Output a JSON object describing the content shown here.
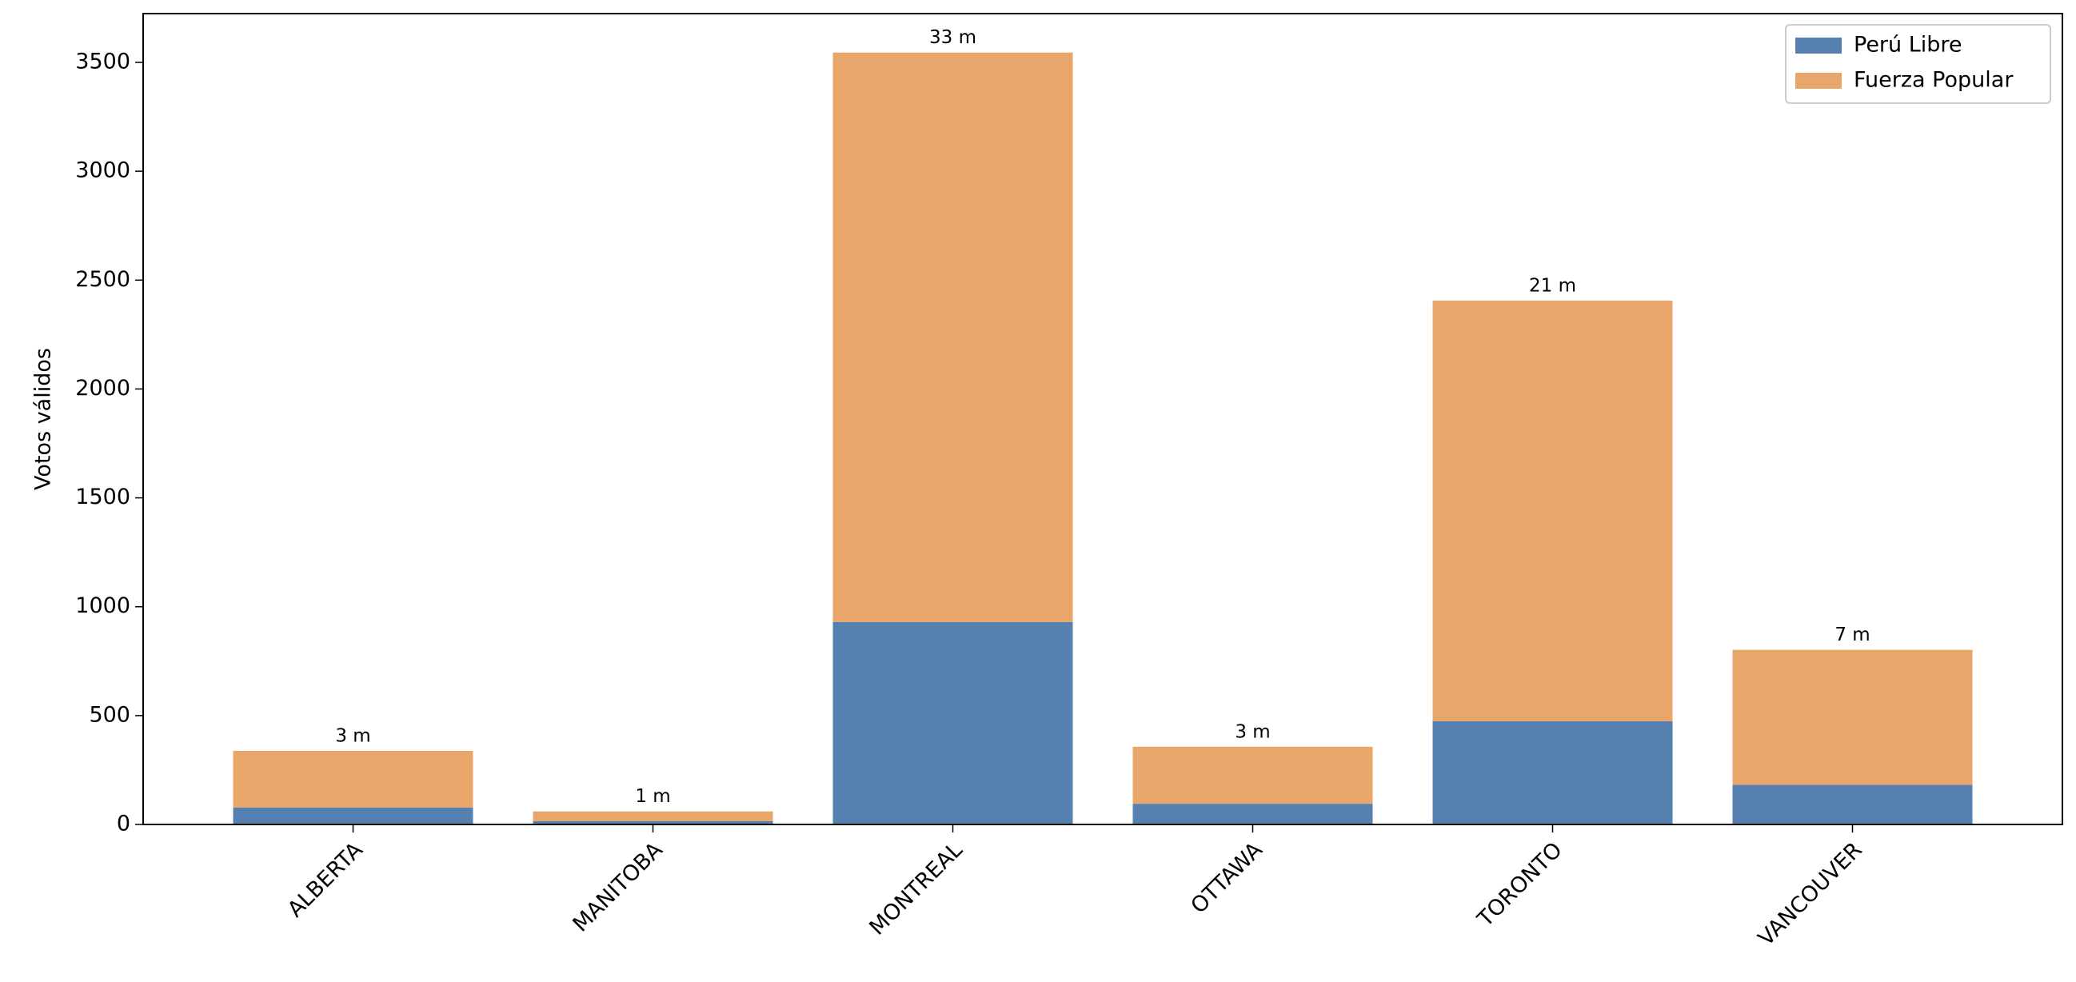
{
  "chart_data": {
    "type": "stacked_bar",
    "y_label": "Votos válidos",
    "categories": [
      "ALBERTA",
      "MANITOBA",
      "MONTREAL",
      "OTTAWA",
      "TORONTO",
      "VANCOUVER"
    ],
    "series": [
      {
        "name": "Perú Libre",
        "color": "#5580b0",
        "values": [
          78,
          15,
          930,
          95,
          474,
          182
        ]
      },
      {
        "name": "Fuerza Popular",
        "color": "#e8a66b",
        "values": [
          260,
          45,
          2615,
          262,
          1932,
          620
        ]
      }
    ],
    "bar_labels": [
      "3 m",
      "1 m",
      "33 m",
      "3 m",
      "21 m",
      "7 m"
    ],
    "ylim": [
      0,
      3724
    ],
    "yticks": [
      0,
      500,
      1000,
      1500,
      2000,
      2500,
      3000,
      3500
    ],
    "legend": "upper right"
  }
}
